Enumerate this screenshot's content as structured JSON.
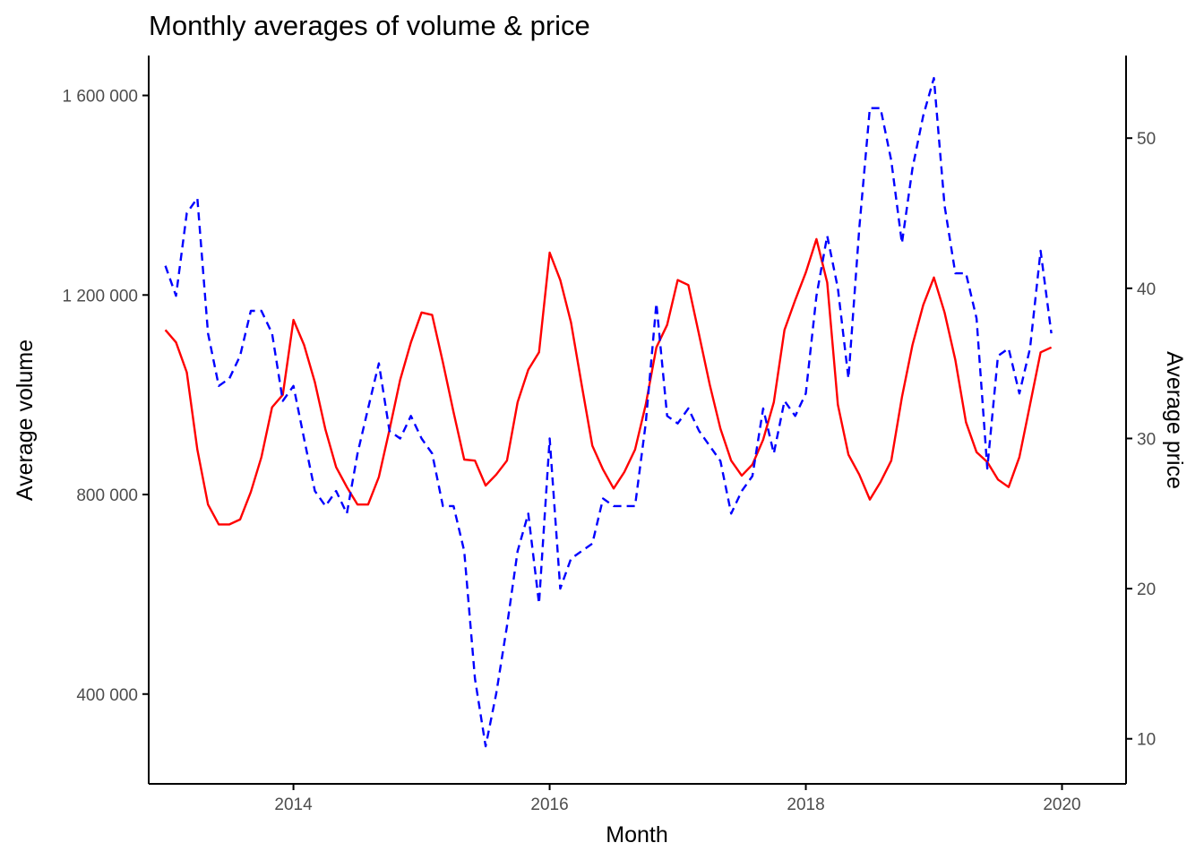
{
  "chart_data": {
    "type": "line",
    "title": "Monthly averages of volume & price",
    "xlabel": "Month",
    "ylabel": "Average volume",
    "y2label": "Average price",
    "xlim": [
      2012.87,
      2020.5
    ],
    "ylim": [
      220000,
      1680000
    ],
    "y2lim": [
      7,
      55.5
    ],
    "x_ticks": [
      2014,
      2016,
      2018,
      2020
    ],
    "y_ticks": [
      400000,
      800000,
      1200000,
      1600000
    ],
    "y_tick_labels": [
      "400 000",
      "800 000",
      "1 200 000",
      "1 600 000"
    ],
    "y2_ticks": [
      10,
      20,
      30,
      40,
      50
    ],
    "y2_tick_labels": [
      "10",
      "20",
      "30",
      "40",
      "50"
    ],
    "grid": false,
    "colors": {
      "volume": "#ff0000",
      "price": "#0000ff"
    },
    "series": [
      {
        "axis": "left",
        "style": "solid",
        "x": [
          2013.0,
          2013.083,
          2013.167,
          2013.25,
          2013.333,
          2013.417,
          2013.5,
          2013.583,
          2013.667,
          2013.75,
          2013.833,
          2013.917,
          2014.0,
          2014.083,
          2014.167,
          2014.25,
          2014.333,
          2014.417,
          2014.5,
          2014.583,
          2014.667,
          2014.75,
          2014.833,
          2014.917,
          2015.0,
          2015.083,
          2015.167,
          2015.25,
          2015.333,
          2015.417,
          2015.5,
          2015.583,
          2015.667,
          2015.75,
          2015.833,
          2015.917,
          2016.0,
          2016.083,
          2016.167,
          2016.25,
          2016.333,
          2016.417,
          2016.5,
          2016.583,
          2016.667,
          2016.75,
          2016.833,
          2016.917,
          2017.0,
          2017.083,
          2017.167,
          2017.25,
          2017.333,
          2017.417,
          2017.5,
          2017.583,
          2017.667,
          2017.75,
          2017.833,
          2017.917,
          2018.0,
          2018.083,
          2018.167,
          2018.25,
          2018.333,
          2018.417,
          2018.5,
          2018.583,
          2018.667,
          2018.75,
          2018.833,
          2018.917,
          2019.0,
          2019.083,
          2019.167,
          2019.25,
          2019.333,
          2019.417,
          2019.5,
          2019.583,
          2019.667,
          2019.75,
          2019.833,
          2019.917
        ],
        "values": [
          1130000,
          1105000,
          1045000,
          890000,
          780000,
          740000,
          740000,
          750000,
          805000,
          875000,
          975000,
          1000000,
          1150000,
          1100000,
          1025000,
          930000,
          855000,
          815000,
          780000,
          780000,
          835000,
          930000,
          1030000,
          1105000,
          1165000,
          1160000,
          1065000,
          965000,
          870000,
          868000,
          818000,
          840000,
          868000,
          985000,
          1050000,
          1085000,
          1285000,
          1230000,
          1145000,
          1020000,
          898000,
          850000,
          812000,
          845000,
          890000,
          980000,
          1095000,
          1140000,
          1230000,
          1220000,
          1120000,
          1020000,
          932000,
          868000,
          838000,
          860000,
          910000,
          985000,
          1130000,
          1190000,
          1245000,
          1312000,
          1225000,
          980000,
          880000,
          840000,
          790000,
          825000,
          868000,
          995000,
          1100000,
          1180000,
          1235000,
          1165000,
          1070000,
          945000,
          885000,
          865000,
          830000,
          815000,
          875000,
          980000,
          1085000,
          1095000
        ]
      },
      {
        "axis": "right",
        "style": "dashed",
        "x": [
          2013.0,
          2013.083,
          2013.167,
          2013.25,
          2013.333,
          2013.417,
          2013.5,
          2013.583,
          2013.667,
          2013.75,
          2013.833,
          2013.917,
          2014.0,
          2014.083,
          2014.167,
          2014.25,
          2014.333,
          2014.417,
          2014.5,
          2014.583,
          2014.667,
          2014.75,
          2014.833,
          2014.917,
          2015.0,
          2015.083,
          2015.167,
          2015.25,
          2015.333,
          2015.417,
          2015.5,
          2015.583,
          2015.667,
          2015.75,
          2015.833,
          2015.917,
          2016.0,
          2016.083,
          2016.167,
          2016.25,
          2016.333,
          2016.417,
          2016.5,
          2016.583,
          2016.667,
          2016.75,
          2016.833,
          2016.917,
          2017.0,
          2017.083,
          2017.167,
          2017.25,
          2017.333,
          2017.417,
          2017.5,
          2017.583,
          2017.667,
          2017.75,
          2017.833,
          2017.917,
          2018.0,
          2018.083,
          2018.167,
          2018.25,
          2018.333,
          2018.417,
          2018.5,
          2018.583,
          2018.667,
          2018.75,
          2018.833,
          2018.917,
          2019.0,
          2019.083,
          2019.167,
          2019.25,
          2019.333,
          2019.417,
          2019.5,
          2019.583,
          2019.667,
          2019.75,
          2019.833,
          2019.917
        ],
        "values": [
          41.5,
          39.5,
          45,
          46,
          37,
          33.5,
          34,
          35.5,
          38.5,
          38.5,
          37,
          32.5,
          33.5,
          30,
          26.5,
          25.5,
          26.5,
          25,
          29,
          32,
          35,
          30.5,
          30,
          31.5,
          30,
          29,
          25.5,
          25.5,
          22.5,
          14,
          9.5,
          13,
          17.5,
          22.5,
          25,
          19,
          30,
          20,
          22,
          22.5,
          23,
          26,
          25.5,
          25.5,
          25.5,
          31,
          39,
          31.5,
          31,
          32,
          30.5,
          29.5,
          28.5,
          25,
          26.5,
          27.5,
          32,
          29,
          32.5,
          31.5,
          33,
          39.5,
          43.5,
          40,
          34,
          44,
          52,
          52,
          48.5,
          43,
          48,
          51.5,
          54,
          45.5,
          41,
          41,
          38,
          28,
          35.5,
          36,
          33,
          36,
          42.5,
          37
        ]
      }
    ]
  }
}
